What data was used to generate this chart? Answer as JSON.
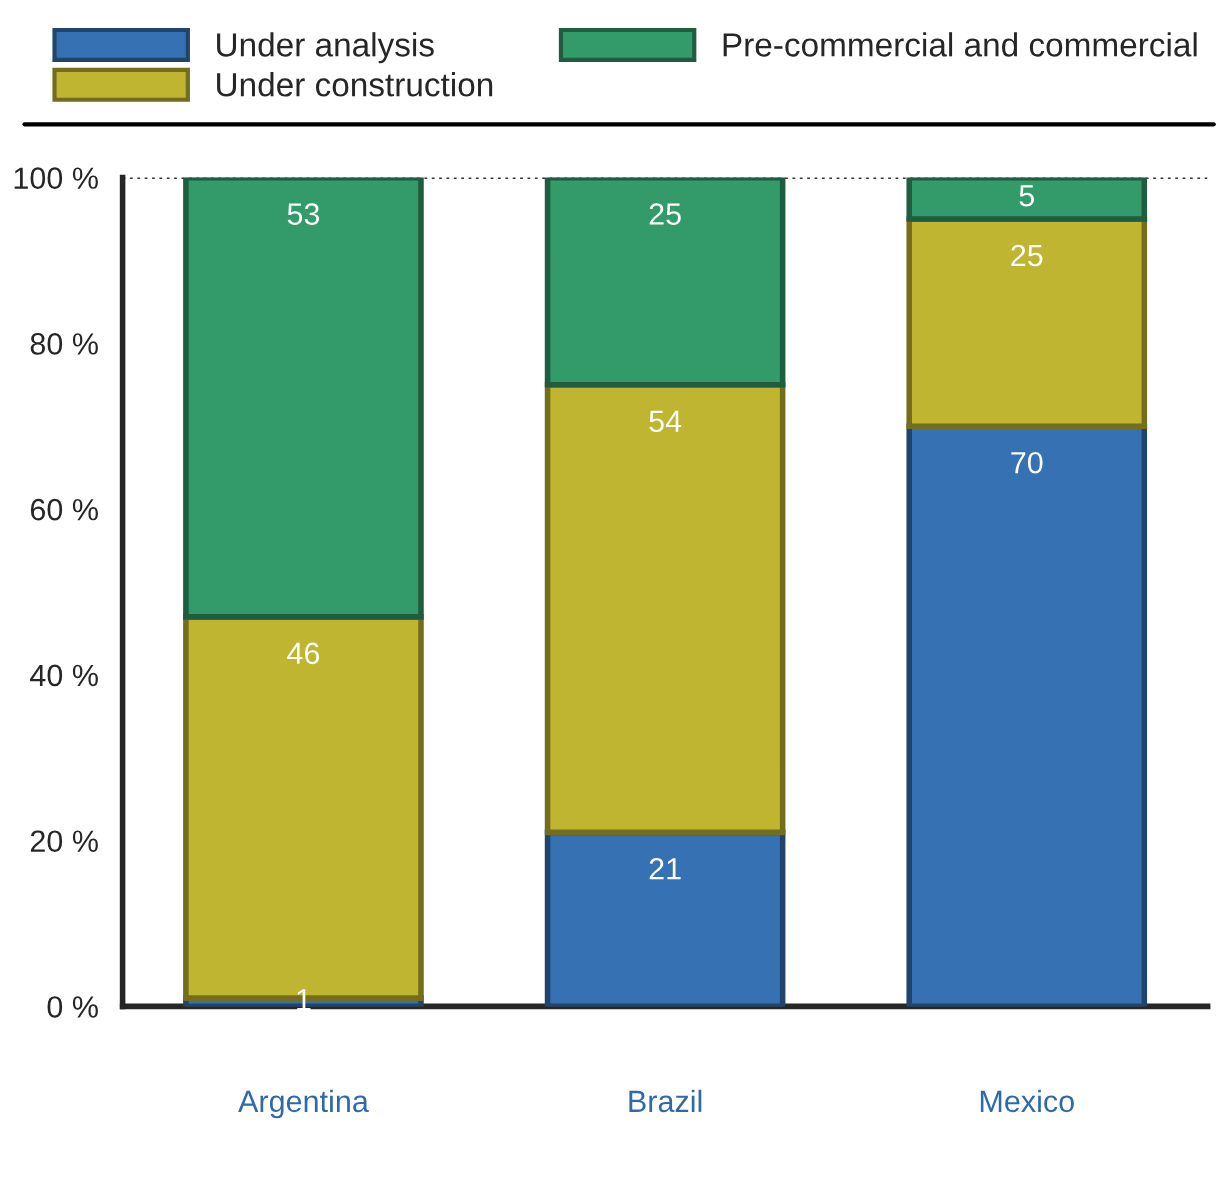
{
  "chart_data": {
    "type": "bar",
    "stacked": true,
    "categories": [
      "Argentina",
      "Brazil",
      "Mexico"
    ],
    "series": [
      {
        "name": "Under analysis",
        "color": "#3671b4",
        "values": [
          1,
          21,
          70
        ]
      },
      {
        "name": "Under construction",
        "color": "#bfb530",
        "values": [
          46,
          54,
          25
        ]
      },
      {
        "name": "Pre-commercial and commercial",
        "color": "#339a6a",
        "values": [
          53,
          25,
          5
        ]
      }
    ],
    "ylim": [
      0,
      100
    ],
    "yticks": [
      {
        "value": 0,
        "label": "0 %"
      },
      {
        "value": 20,
        "label": "20 %"
      },
      {
        "value": 40,
        "label": "40 %"
      },
      {
        "value": 60,
        "label": "60 %"
      },
      {
        "value": 80,
        "label": "80 %"
      },
      {
        "value": 100,
        "label": "100 %"
      }
    ],
    "ref_lines": [
      {
        "axis": "y",
        "value": 100,
        "label": null,
        "color": "#333333",
        "line_style": "dotted"
      }
    ],
    "data_labels": true,
    "legend": "top",
    "grid": false
  }
}
